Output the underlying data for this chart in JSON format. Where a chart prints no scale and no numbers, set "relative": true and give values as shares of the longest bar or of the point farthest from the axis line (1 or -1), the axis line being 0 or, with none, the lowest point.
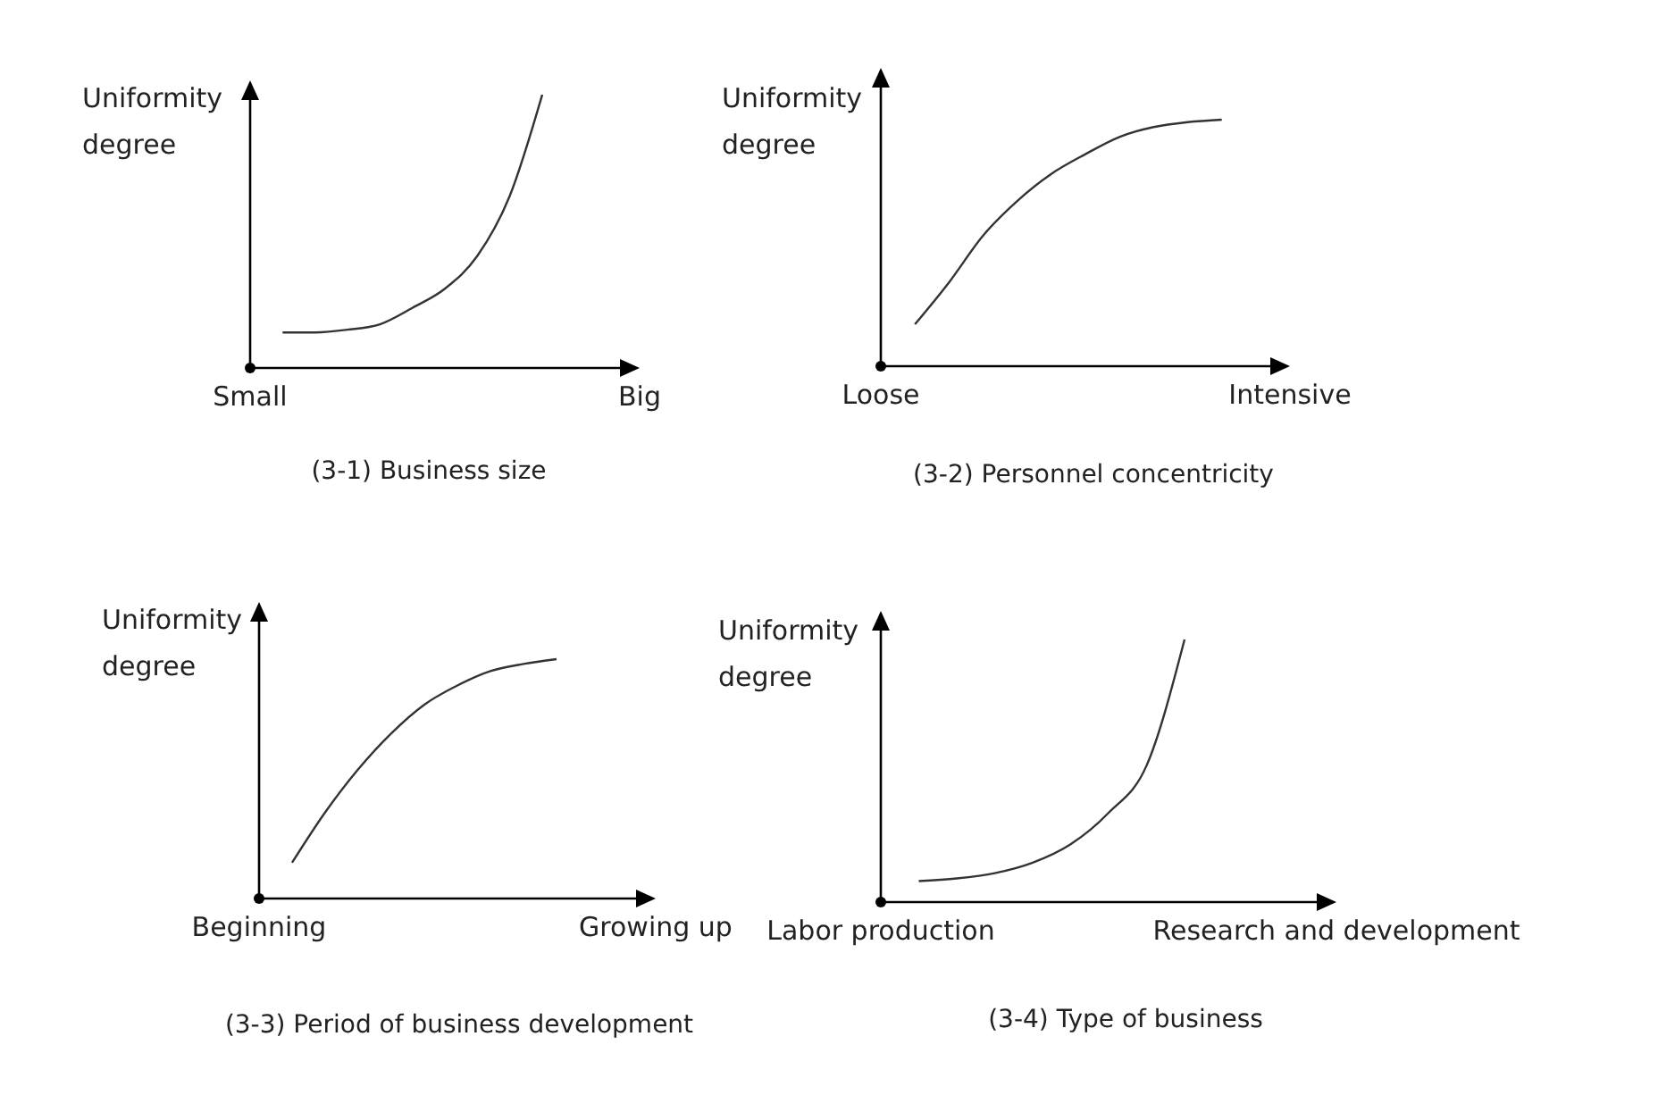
{
  "chart_data": [
    {
      "type": "line",
      "title": "(3-1) Business size",
      "ylabel": "Uniformity degree",
      "relative": true,
      "categories": [
        "Small",
        null,
        null,
        null,
        null,
        null,
        null,
        null,
        null,
        null,
        null,
        null,
        "Big"
      ],
      "series": [
        {
          "color": "#333333",
          "values": [
            null,
            0.13,
            0.13,
            0.14,
            0.16,
            0.22,
            0.29,
            0.41,
            0.63,
            1.0,
            null,
            null,
            null
          ]
        }
      ]
    },
    {
      "type": "line",
      "title": "(3-2) Personnel concentricity",
      "ylabel": "Uniformity degree",
      "relative": true,
      "categories": [
        "Loose",
        null,
        null,
        null,
        null,
        null,
        null,
        null,
        null,
        null,
        null,
        null,
        "Intensive"
      ],
      "series": [
        {
          "color": "#333333",
          "values": [
            null,
            0.17,
            0.34,
            0.53,
            0.67,
            0.78,
            0.86,
            0.93,
            0.97,
            0.99,
            1.0,
            null,
            null
          ]
        }
      ]
    },
    {
      "type": "line",
      "title": "(3-3) Period of business development",
      "ylabel": "Uniformity degree",
      "relative": true,
      "categories": [
        "Beginning",
        null,
        null,
        null,
        null,
        null,
        null,
        null,
        null,
        null,
        null,
        null,
        "Growing up"
      ],
      "series": [
        {
          "color": "#333333",
          "values": [
            null,
            0.15,
            0.36,
            0.54,
            0.69,
            0.81,
            0.89,
            0.95,
            0.98,
            1.0,
            null,
            null,
            null
          ]
        }
      ]
    },
    {
      "type": "line",
      "title": "(3-4) Type of business",
      "ylabel": "Uniformity degree",
      "relative": true,
      "categories": [
        "Labor production",
        null,
        null,
        null,
        null,
        null,
        null,
        null,
        null,
        null,
        null,
        null,
        "Research and development"
      ],
      "series": [
        {
          "color": "#333333",
          "values": [
            null,
            0.08,
            0.09,
            0.11,
            0.15,
            0.22,
            0.34,
            0.52,
            1.0,
            null,
            null,
            null,
            null
          ]
        }
      ]
    }
  ]
}
